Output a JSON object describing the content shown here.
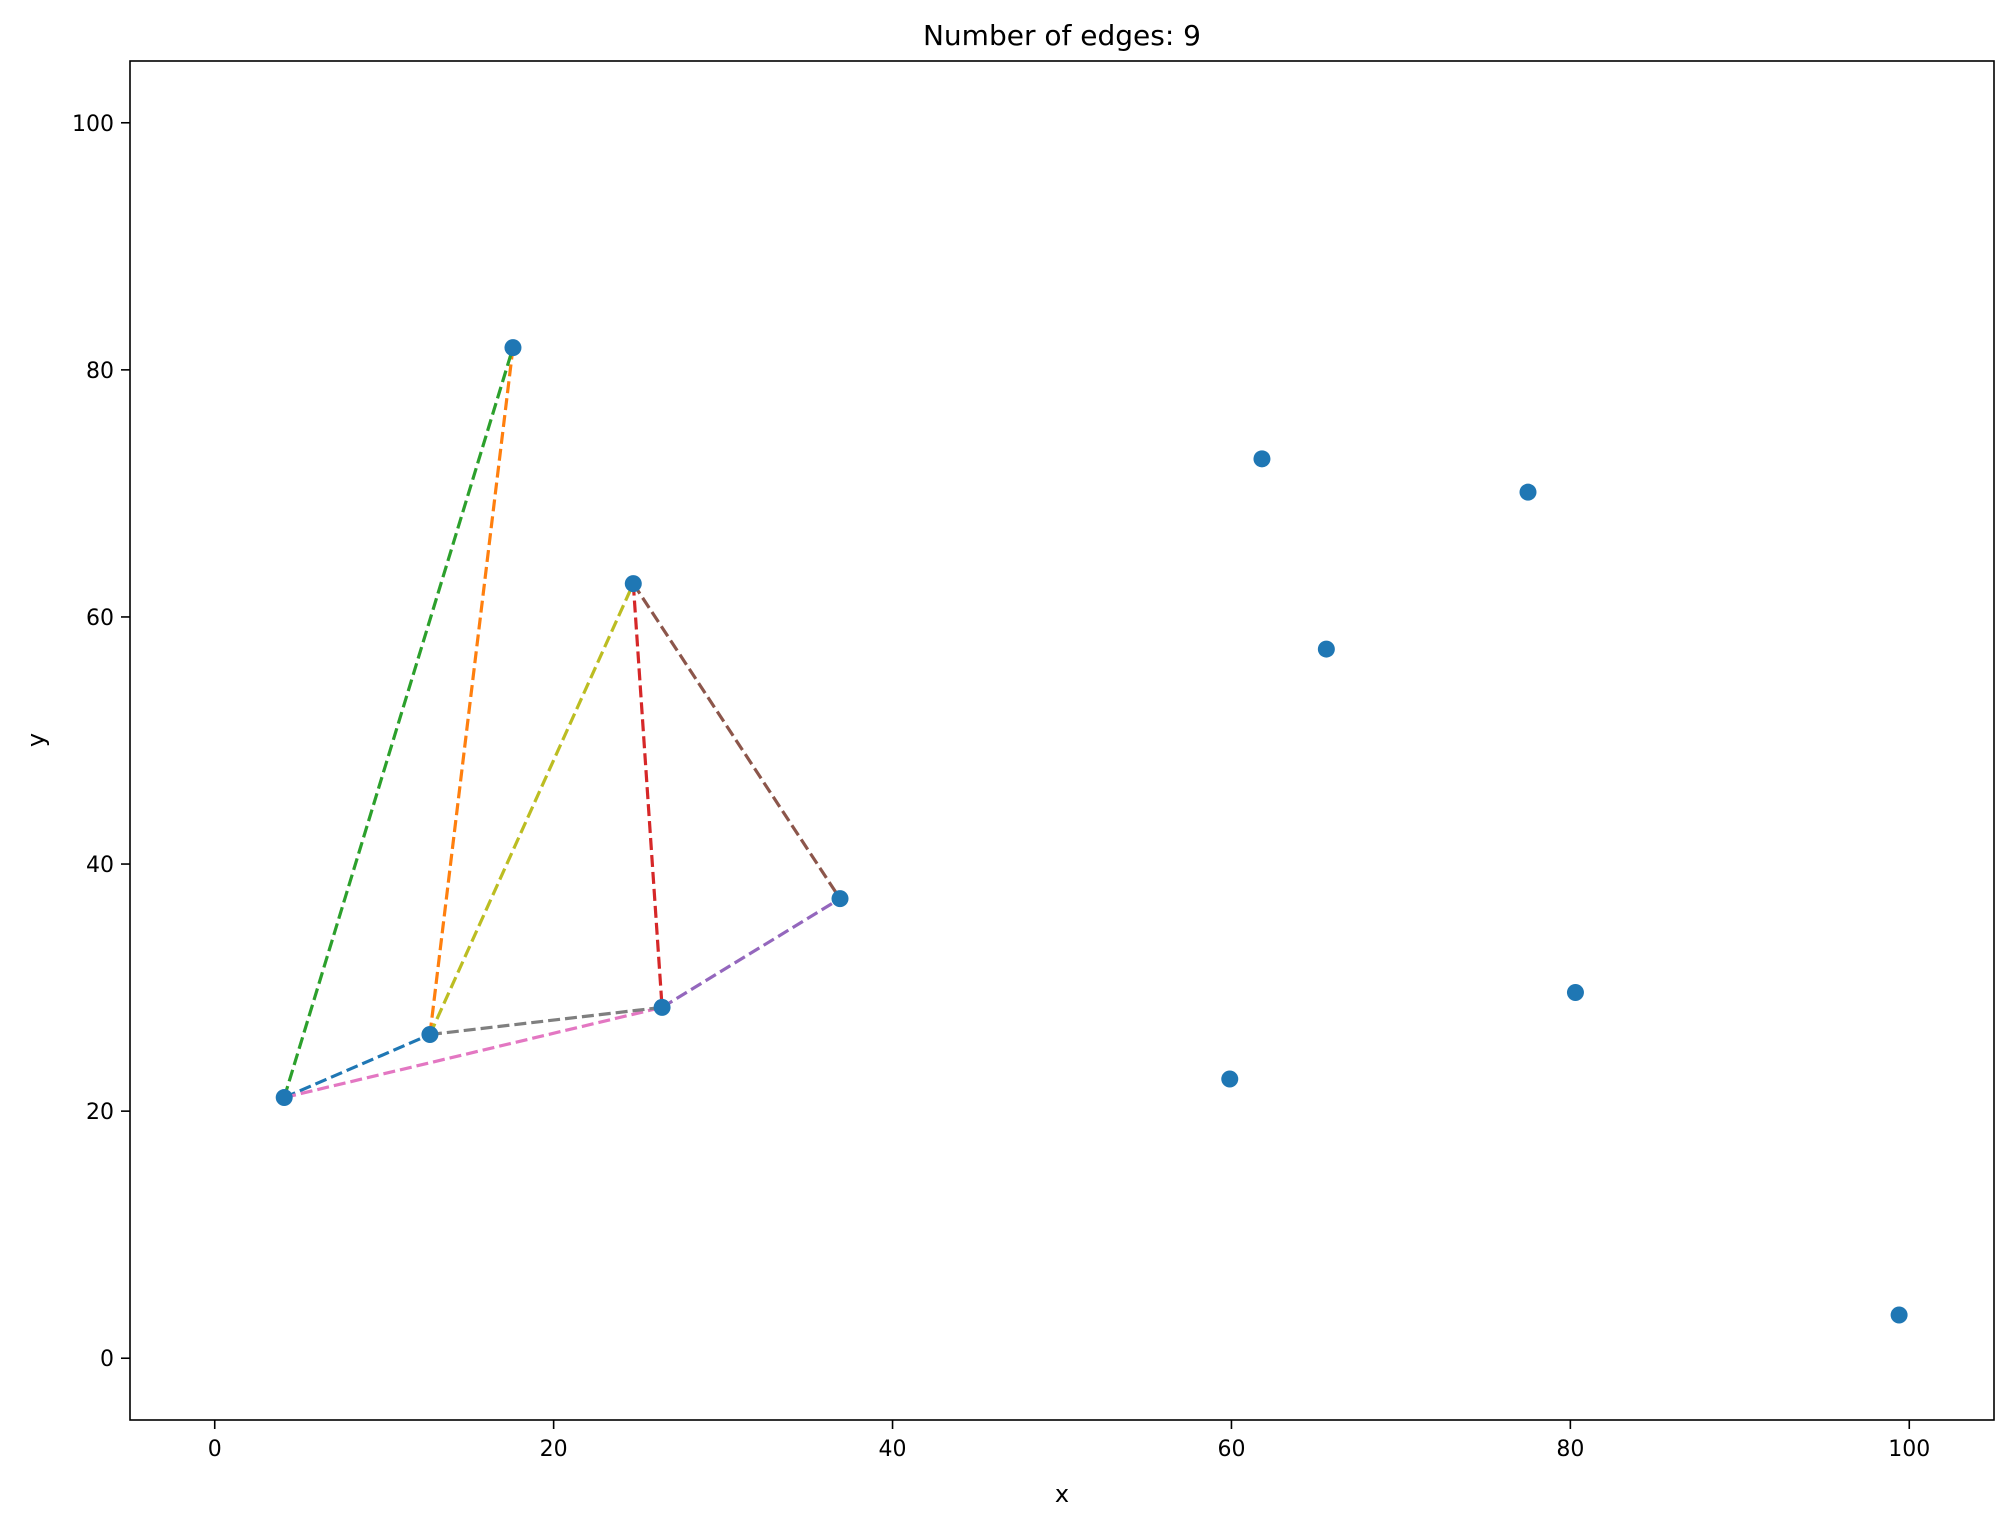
{
  "chart_data": {
    "type": "scatter",
    "title": "Number of edges: 9",
    "xlabel": "x",
    "ylabel": "y",
    "xlim": [
      -5,
      105
    ],
    "ylim": [
      -5,
      105
    ],
    "xticks": [
      0,
      20,
      40,
      60,
      80,
      100
    ],
    "yticks": [
      0,
      20,
      40,
      60,
      80,
      100
    ],
    "grid": false,
    "point_color": "#1f77b4",
    "points": [
      {
        "x": 4.1,
        "y": 21.1
      },
      {
        "x": 12.7,
        "y": 26.2
      },
      {
        "x": 17.6,
        "y": 81.8
      },
      {
        "x": 24.7,
        "y": 62.7
      },
      {
        "x": 26.4,
        "y": 28.4
      },
      {
        "x": 36.9,
        "y": 37.2
      },
      {
        "x": 59.9,
        "y": 22.6
      },
      {
        "x": 61.8,
        "y": 72.8
      },
      {
        "x": 65.6,
        "y": 57.4
      },
      {
        "x": 77.5,
        "y": 70.1
      },
      {
        "x": 80.3,
        "y": 29.6
      },
      {
        "x": 99.4,
        "y": 3.5
      }
    ],
    "edges": [
      {
        "from": 0,
        "to": 1,
        "color": "#1f77b4"
      },
      {
        "from": 1,
        "to": 2,
        "color": "#ff7f0e"
      },
      {
        "from": 0,
        "to": 2,
        "color": "#2ca02c"
      },
      {
        "from": 3,
        "to": 4,
        "color": "#d62728"
      },
      {
        "from": 4,
        "to": 5,
        "color": "#9467bd"
      },
      {
        "from": 3,
        "to": 5,
        "color": "#8c564b"
      },
      {
        "from": 0,
        "to": 4,
        "color": "#e377c2"
      },
      {
        "from": 1,
        "to": 4,
        "color": "#7f7f7f"
      },
      {
        "from": 1,
        "to": 3,
        "color": "#bcbd22"
      }
    ]
  }
}
